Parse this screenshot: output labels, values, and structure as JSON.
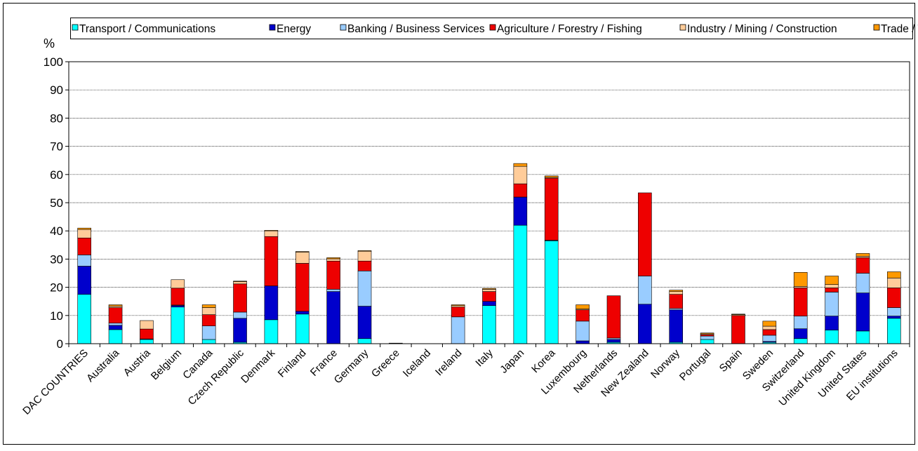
{
  "chart_data": {
    "type": "bar",
    "stacked": true,
    "ylabel": "%",
    "ylim": [
      0,
      100
    ],
    "yticks": [
      0,
      10,
      20,
      30,
      40,
      50,
      60,
      70,
      80,
      90,
      100
    ],
    "grid": true,
    "legend_position": "top",
    "categories": [
      "DAC COUNTRIES",
      "Australia",
      "Austria",
      "Belgium",
      "Canada",
      "Czech Republic",
      "Denmark",
      "Finland",
      "France",
      "Germany",
      "Greece",
      "Iceland",
      "Ireland",
      "Italy",
      "Japan",
      "Korea",
      "Luxembourg",
      "Netherlands",
      "New Zealand",
      "Norway",
      "Portugal",
      "Spain",
      "Sweden",
      "Switzerland",
      "United Kingdom",
      "United States",
      "EU institutions"
    ],
    "series": [
      {
        "name": "Transport / Communications",
        "color": "#00FFFF",
        "values": [
          17.5,
          5,
          1.5,
          13,
          1.5,
          0.5,
          8.5,
          10.5,
          0,
          1.8,
          0,
          0,
          0,
          13.5,
          42,
          36.5,
          0,
          0.5,
          0,
          0.5,
          1.5,
          0,
          0.5,
          1.8,
          4.8,
          4.5,
          9
        ]
      },
      {
        "name": "Energy",
        "color": "#0000CC",
        "values": [
          10,
          1.5,
          0.2,
          0.5,
          0,
          8.5,
          12,
          1,
          18.5,
          11.5,
          0,
          0,
          0,
          1.5,
          10,
          0.2,
          1,
          1,
          14,
          11.5,
          0,
          0,
          0.3,
          3.5,
          5,
          13.5,
          0.8
        ]
      },
      {
        "name": "Banking / Business Services",
        "color": "#99CCFF",
        "values": [
          4,
          0.8,
          0,
          0.2,
          4.8,
          2.2,
          0,
          0,
          0.8,
          12.5,
          0,
          0,
          9.5,
          0,
          0,
          0,
          7,
          0.5,
          10,
          0.5,
          1.2,
          0,
          2.2,
          4.5,
          8.5,
          7,
          3
        ]
      },
      {
        "name": "Agriculture / Forestry / Fishing",
        "color": "#EE0000",
        "values": [
          6,
          5.5,
          3.5,
          6,
          4,
          10,
          17.5,
          17,
          10,
          3.5,
          0,
          0,
          3.5,
          3.5,
          4.7,
          22,
          4,
          15,
          29.5,
          5,
          0.5,
          10,
          2,
          10,
          1.5,
          5.5,
          7
        ]
      },
      {
        "name": "Industry / Mining / Construction",
        "color": "#FFCC99",
        "values": [
          3,
          0.5,
          3,
          3,
          2.5,
          0.8,
          2,
          4,
          0.8,
          3.5,
          0.2,
          0,
          0.5,
          0.8,
          6.2,
          0.3,
          0.3,
          0,
          0,
          1,
          0.3,
          0.3,
          1.2,
          0.5,
          1.2,
          0.5,
          3.5
        ]
      },
      {
        "name": "Trade / Tourism",
        "color": "#FF9900",
        "values": [
          0.5,
          0.5,
          0,
          0,
          1,
          0.2,
          0.2,
          0.2,
          0.4,
          0.2,
          0,
          0,
          0.3,
          0.3,
          1,
          0.5,
          1.5,
          0,
          0,
          0.5,
          0.3,
          0.2,
          1.8,
          5,
          3,
          1,
          2.2
        ]
      }
    ]
  }
}
